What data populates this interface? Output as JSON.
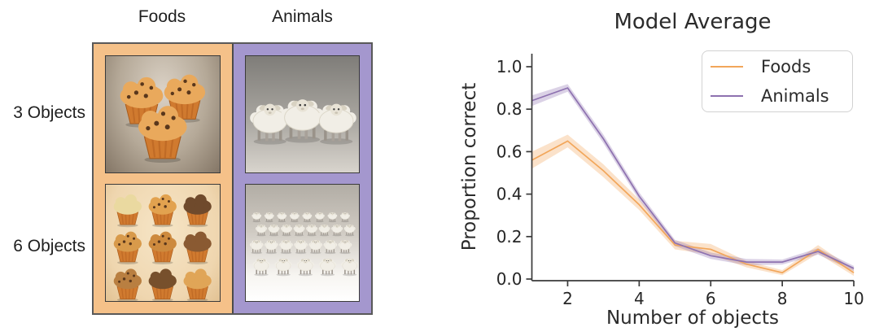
{
  "figure": {
    "left_panel": {
      "col_headers": [
        "Foods",
        "Animals"
      ],
      "row_labels": [
        "3 Objects",
        "6 Objects"
      ],
      "columns": [
        {
          "name": "Foods",
          "bg": "#f5c189"
        },
        {
          "name": "Animals",
          "bg": "#a497ce"
        }
      ],
      "cells": [
        {
          "desc": "photo of three muffins",
          "icon": "muffin",
          "icon_count": 3,
          "layout": "trio"
        },
        {
          "desc": "photo of three fluffy sheep",
          "icon": "sheep",
          "icon_count": 3,
          "layout": "trio-row"
        },
        {
          "desc": "photo of nine assorted muffins",
          "icon": "muffin",
          "icon_count": 9,
          "layout": "grid3x3"
        },
        {
          "desc": "photo of a herd of sheep",
          "icon": "sheep",
          "icon_count": 28,
          "layout": "herd"
        }
      ],
      "border_color": "#4a4a4a"
    }
  },
  "chart_data": {
    "type": "line",
    "title": "Model Average",
    "xlabel": "Number of objects",
    "ylabel": "Proportion correct",
    "x": [
      1,
      2,
      3,
      4,
      5,
      6,
      7,
      8,
      9,
      10
    ],
    "series": [
      {
        "name": "Foods",
        "color": "#f2a65a",
        "values": [
          0.56,
          0.65,
          0.51,
          0.35,
          0.16,
          0.14,
          0.07,
          0.03,
          0.14,
          0.03
        ],
        "band": [
          0.04,
          0.03,
          0.03,
          0.025,
          0.02,
          0.025,
          0.015,
          0.012,
          0.02,
          0.015
        ]
      },
      {
        "name": "Animals",
        "color": "#8e72b0",
        "values": [
          0.84,
          0.9,
          0.66,
          0.39,
          0.17,
          0.11,
          0.08,
          0.08,
          0.13,
          0.05
        ],
        "band": [
          0.025,
          0.018,
          0.02,
          0.018,
          0.015,
          0.015,
          0.015,
          0.012,
          0.015,
          0.012
        ]
      }
    ],
    "xticks": [
      "2",
      "4",
      "6",
      "8",
      "10"
    ],
    "yticks": [
      "0.0",
      "0.2",
      "0.4",
      "0.6",
      "0.8",
      "1.0"
    ],
    "xlim": [
      1,
      10
    ],
    "ylim": [
      0,
      1.05
    ],
    "grid": false,
    "legend_position": "upper right",
    "axis_color": "#3a3a3a",
    "tick_text_color": "#262626"
  }
}
